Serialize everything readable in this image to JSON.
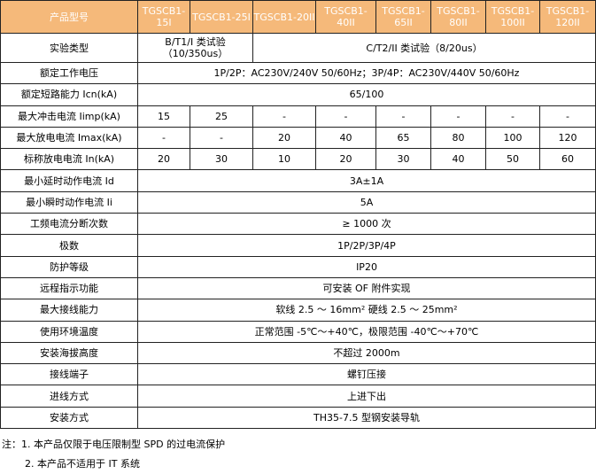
{
  "header": {
    "label": "产品型号",
    "models": [
      "TGSCB1-15I",
      "TGSCB1-25I",
      "TGSCB1-20II",
      "TGSCB1-40II",
      "TGSCB1-65II",
      "TGSCB1-80II",
      "TGSCB1-100II",
      "TGSCB1-120II"
    ]
  },
  "colors": {
    "header_bg": "#F5B97A",
    "header_text": "#ffffff"
  },
  "test_type": {
    "label": "实验类型",
    "class1": "B/T1/I 类试验（10/350us）",
    "class2": "C/T2/II 类试验（8/20us）"
  },
  "voltage": {
    "label": "额定工作电压",
    "value": "1P/2P：AC230V/240V 50/60Hz；3P/4P：AC230V/440V 50/60Hz"
  },
  "short_circuit": {
    "label": "额定短路能力 Icn(kA)",
    "value": "65/100"
  },
  "iimp": {
    "label": "最大冲击电流 Iimp(kA)",
    "values": [
      "15",
      "25",
      "-",
      "-",
      "-",
      "-",
      "-",
      "-"
    ]
  },
  "imax": {
    "label": "最大放电电流 Imax(kA)",
    "values": [
      "-",
      "-",
      "20",
      "40",
      "65",
      "80",
      "100",
      "120"
    ]
  },
  "in": {
    "label": "标称放电电流 In(kA)",
    "values": [
      "20",
      "30",
      "10",
      "20",
      "30",
      "40",
      "50",
      "60"
    ]
  },
  "rows": [
    {
      "label": "最小延时动作电流 Id",
      "value": "3A±1A"
    },
    {
      "label": "最小瞬时动作电流 Ii",
      "value": "5A"
    },
    {
      "label": "工频电流分断次数",
      "value": "≥ 1000 次"
    },
    {
      "label": "极数",
      "value": "1P/2P/3P/4P"
    },
    {
      "label": "防护等级",
      "value": "IP20"
    },
    {
      "label": "远程指示功能",
      "value": "可安装 OF 附件实现"
    },
    {
      "label": "最大接线能力",
      "value": "软线 2.5 ～ 16mm² 硬线 2.5 ～ 25mm²"
    },
    {
      "label": "使用环境温度",
      "value": "正常范围 -5℃～+40℃，极限范围 -40℃～+70℃"
    },
    {
      "label": "安装海拔高度",
      "value": "不超过 2000m"
    },
    {
      "label": "接线端子",
      "value": "螺钉压接"
    },
    {
      "label": "进线方式",
      "value": "上进下出"
    },
    {
      "label": "安装方式",
      "value": "TH35-7.5 型钢安装导轨"
    }
  ],
  "notes": [
    "注：1. 本产品仅限于电压限制型 SPD 的过电流保护",
    "2. 本产品不适用于 IT 系统"
  ]
}
